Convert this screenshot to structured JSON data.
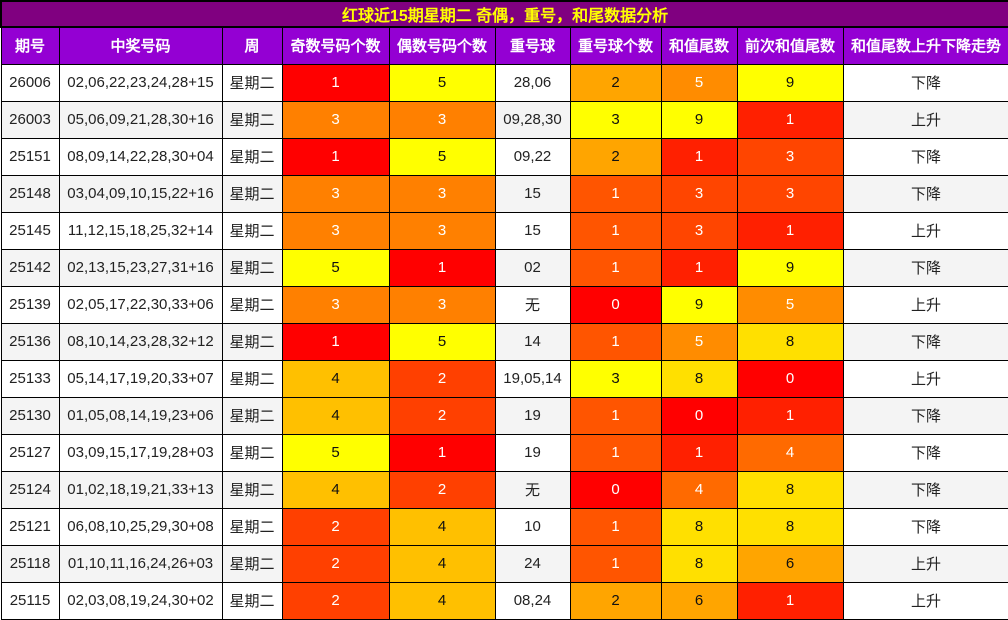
{
  "title": "红球近15期星期二 奇偶，重号，和尾数据分析",
  "headers": [
    "期号",
    "中奖号码",
    "周",
    "奇数号码个数",
    "偶数号码个数",
    "重号球",
    "重号球个数",
    "和值尾数",
    "前次和值尾数",
    "和值尾数上升下降走势"
  ],
  "colors": {
    "odd_even": {
      "1": "#ff0000",
      "2": "#ff4000",
      "3": "#ff8000",
      "4": "#ffc000",
      "5": "#ffff00"
    },
    "repeat": {
      "0": "#ff0000",
      "1": "#ff5500",
      "2": "#ffa500",
      "3": "#ffff00"
    },
    "tail": {
      "0": "#ff0000",
      "1": "#ff2000",
      "3": "#ff4500",
      "4": "#ff6a00",
      "5": "#ff8c00",
      "6": "#ffa500",
      "8": "#ffe000",
      "9": "#ffff00"
    },
    "light_text": "#ffffff",
    "dark_text": "#111111"
  },
  "rows": [
    [
      "26006",
      "02,06,22,23,24,28+15",
      "星期二",
      "1",
      "5",
      "28,06",
      "2",
      "5",
      "9",
      "下降"
    ],
    [
      "26003",
      "05,06,09,21,28,30+16",
      "星期二",
      "3",
      "3",
      "09,28,30",
      "3",
      "9",
      "1",
      "上升"
    ],
    [
      "25151",
      "08,09,14,22,28,30+04",
      "星期二",
      "1",
      "5",
      "09,22",
      "2",
      "1",
      "3",
      "下降"
    ],
    [
      "25148",
      "03,04,09,10,15,22+16",
      "星期二",
      "3",
      "3",
      "15",
      "1",
      "3",
      "3",
      "下降"
    ],
    [
      "25145",
      "11,12,15,18,25,32+14",
      "星期二",
      "3",
      "3",
      "15",
      "1",
      "3",
      "1",
      "上升"
    ],
    [
      "25142",
      "02,13,15,23,27,31+16",
      "星期二",
      "5",
      "1",
      "02",
      "1",
      "1",
      "9",
      "下降"
    ],
    [
      "25139",
      "02,05,17,22,30,33+06",
      "星期二",
      "3",
      "3",
      "无",
      "0",
      "9",
      "5",
      "上升"
    ],
    [
      "25136",
      "08,10,14,23,28,32+12",
      "星期二",
      "1",
      "5",
      "14",
      "1",
      "5",
      "8",
      "下降"
    ],
    [
      "25133",
      "05,14,17,19,20,33+07",
      "星期二",
      "4",
      "2",
      "19,05,14",
      "3",
      "8",
      "0",
      "上升"
    ],
    [
      "25130",
      "01,05,08,14,19,23+06",
      "星期二",
      "4",
      "2",
      "19",
      "1",
      "0",
      "1",
      "下降"
    ],
    [
      "25127",
      "03,09,15,17,19,28+03",
      "星期二",
      "5",
      "1",
      "19",
      "1",
      "1",
      "4",
      "下降"
    ],
    [
      "25124",
      "01,02,18,19,21,33+13",
      "星期二",
      "4",
      "2",
      "无",
      "0",
      "4",
      "8",
      "下降"
    ],
    [
      "25121",
      "06,08,10,25,29,30+08",
      "星期二",
      "2",
      "4",
      "10",
      "1",
      "8",
      "8",
      "下降"
    ],
    [
      "25118",
      "01,10,11,16,24,26+03",
      "星期二",
      "2",
      "4",
      "24",
      "1",
      "8",
      "6",
      "上升"
    ],
    [
      "25115",
      "02,03,08,19,24,30+02",
      "星期二",
      "2",
      "4",
      "08,24",
      "2",
      "6",
      "1",
      "上升"
    ]
  ]
}
